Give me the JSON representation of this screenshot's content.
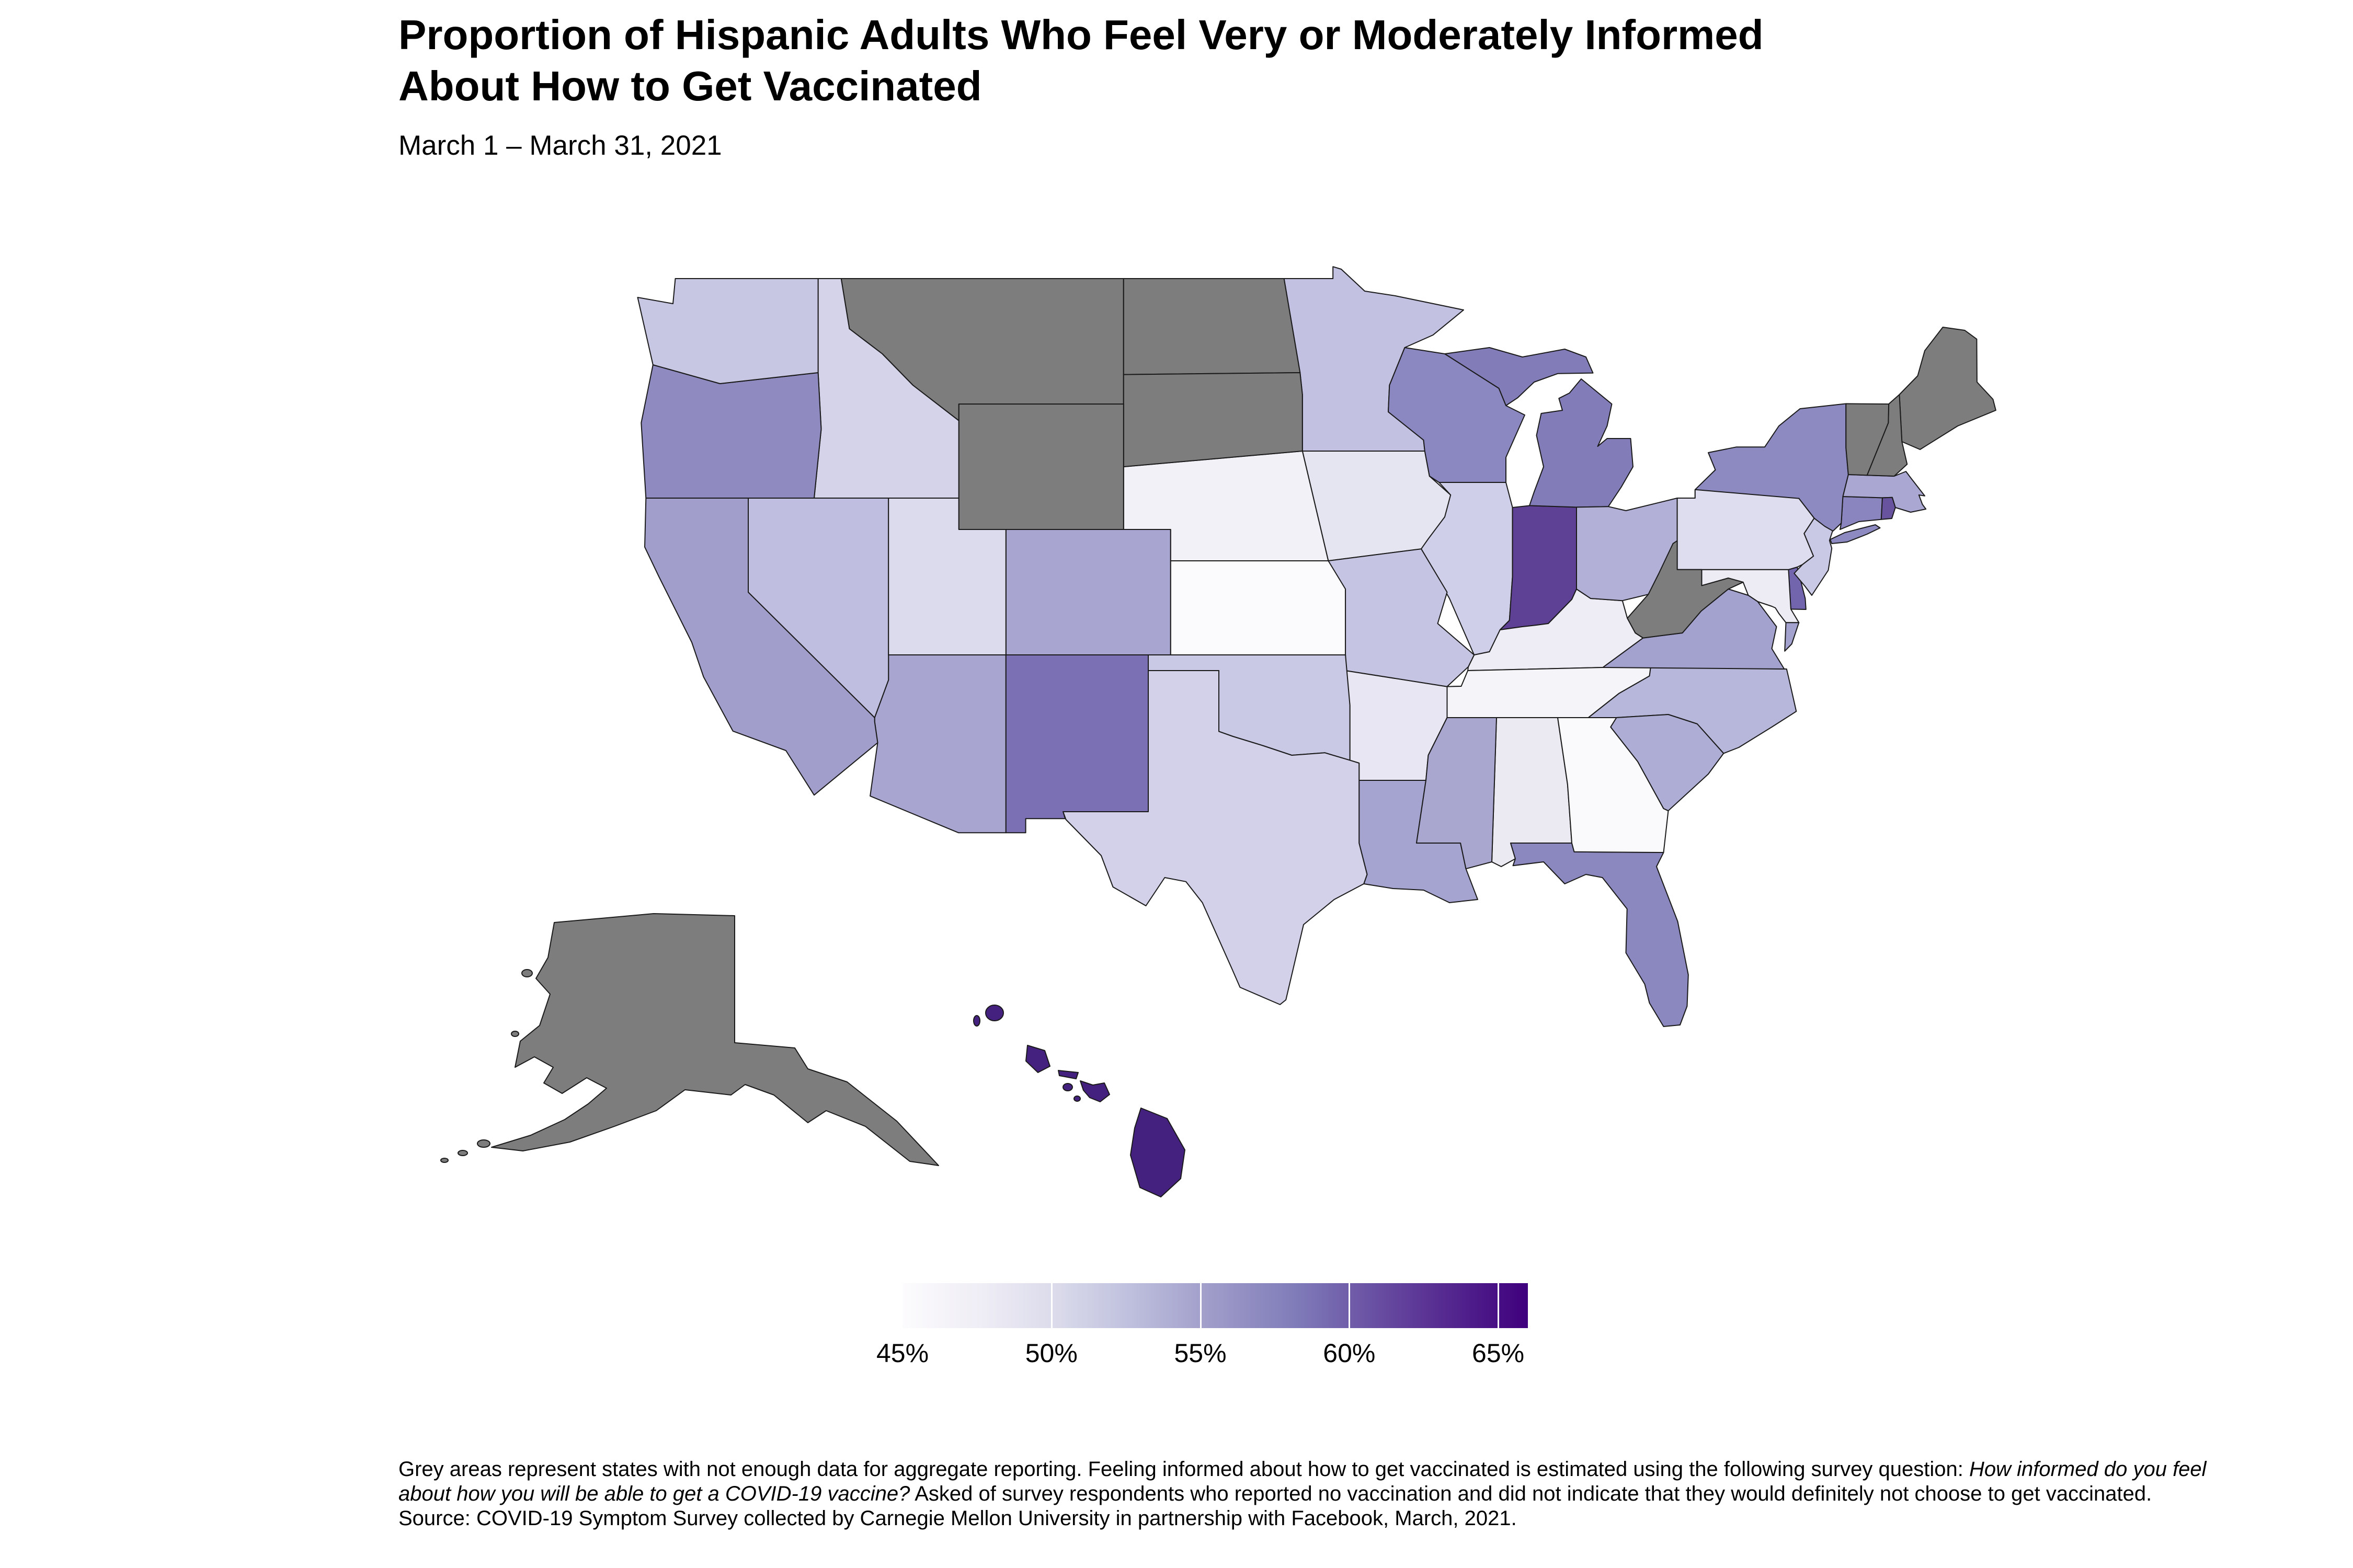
{
  "title": {
    "line1": "Proportion of Hispanic Adults Who Feel Very or Moderately Informed",
    "line2": "About How to Get Vaccinated"
  },
  "subtitle": "March 1 – March 31, 2021",
  "legend": {
    "min_value": 45,
    "max_value": 66,
    "ticks": [
      {
        "label": "45%",
        "value": 45
      },
      {
        "label": "50%",
        "value": 50
      },
      {
        "label": "55%",
        "value": 55
      },
      {
        "label": "60%",
        "value": 60
      },
      {
        "label": "65%",
        "value": 65
      }
    ],
    "gradient": [
      "#fcfbfd",
      "#efedf5",
      "#dadaeb",
      "#bcbddc",
      "#9e9ac8",
      "#807dba",
      "#6a51a3",
      "#54278f",
      "#3f007d"
    ]
  },
  "footnote": {
    "part1": "Grey areas represent states with not enough data for aggregate reporting. Feeling informed about how to get vaccinated is estimated using the following survey question: ",
    "italic": "How informed do you feel about how you will be able to get a COVID-19 vaccine?",
    "part2": " Asked of survey respondents who reported no vaccination and did not indicate that they would definitely not choose to get vaccinated. Source: COVID-19 Symptom Survey collected by Carnegie Mellon University in partnership with Facebook, March, 2021."
  },
  "colors": {
    "background": "#ffffff",
    "state_border": "#1a1a1a",
    "no_data_grey": "#7d7d7d",
    "legend_tick_line": "#ffffff"
  },
  "chart_data": {
    "type": "choropleth",
    "geography": "United States, by state (Albers-style layout with Alaska and Hawaii insets)",
    "metric": "Proportion of Hispanic adults who feel very or moderately informed about how to get vaccinated",
    "unit": "percent",
    "scale_min": 45,
    "scale_max": 66,
    "legend_tick_values": [
      45,
      50,
      55,
      60,
      65
    ],
    "no_data_color": "#7d7d7d",
    "no_data_states": [
      "Alaska",
      "Maine",
      "Montana",
      "New Hampshire",
      "North Dakota",
      "South Dakota",
      "Vermont",
      "West Virginia",
      "Wyoming"
    ],
    "states": [
      {
        "abbr": "AL",
        "name": "Alabama",
        "value": 47,
        "color": "#ebeaf3",
        "no_data": false
      },
      {
        "abbr": "AK",
        "name": "Alaska",
        "value": null,
        "color": "#7d7d7d",
        "no_data": true
      },
      {
        "abbr": "AZ",
        "name": "Arizona",
        "value": 54,
        "color": "#a8a5d0",
        "no_data": false
      },
      {
        "abbr": "AR",
        "name": "Arkansas",
        "value": 48,
        "color": "#e7e6f2",
        "no_data": false
      },
      {
        "abbr": "CA",
        "name": "California",
        "value": 55,
        "color": "#a19ecb",
        "no_data": false
      },
      {
        "abbr": "CO",
        "name": "Colorado",
        "value": 54,
        "color": "#a8a5d0",
        "no_data": false
      },
      {
        "abbr": "CT",
        "name": "Connecticut",
        "value": 57,
        "color": "#8a85bf",
        "no_data": false
      },
      {
        "abbr": "DE",
        "name": "Delaware",
        "value": 60,
        "color": "#7265ae",
        "no_data": false
      },
      {
        "abbr": "FL",
        "name": "Florida",
        "value": 57,
        "color": "#8b87bf",
        "no_data": false
      },
      {
        "abbr": "GA",
        "name": "Georgia",
        "value": 45,
        "color": "#faf9fc",
        "no_data": false
      },
      {
        "abbr": "HI",
        "name": "Hawaii",
        "value": 65,
        "color": "#45217f",
        "no_data": false
      },
      {
        "abbr": "ID",
        "name": "Idaho",
        "value": 50,
        "color": "#d4d3ea",
        "no_data": false
      },
      {
        "abbr": "IL",
        "name": "Illinois",
        "value": 50,
        "color": "#d0cfe9",
        "no_data": false
      },
      {
        "abbr": "IN",
        "name": "Indiana",
        "value": 62,
        "color": "#5e4194",
        "no_data": false
      },
      {
        "abbr": "IA",
        "name": "Iowa",
        "value": 48,
        "color": "#e5e4f1",
        "no_data": false
      },
      {
        "abbr": "KS",
        "name": "Kansas",
        "value": 45,
        "color": "#fbfafd",
        "no_data": false
      },
      {
        "abbr": "KY",
        "name": "Kentucky",
        "value": 47,
        "color": "#eeedf5",
        "no_data": false
      },
      {
        "abbr": "LA",
        "name": "Louisiana",
        "value": 55,
        "color": "#a5a3cf",
        "no_data": false
      },
      {
        "abbr": "ME",
        "name": "Maine",
        "value": null,
        "color": "#7d7d7d",
        "no_data": true
      },
      {
        "abbr": "MD",
        "name": "Maryland",
        "value": 47,
        "color": "#edecf5",
        "no_data": false
      },
      {
        "abbr": "MA",
        "name": "Massachusetts",
        "value": 54,
        "color": "#aaa8d2",
        "no_data": false
      },
      {
        "abbr": "MI",
        "name": "Michigan",
        "value": 58,
        "color": "#827db9",
        "no_data": false
      },
      {
        "abbr": "MN",
        "name": "Minnesota",
        "value": 52,
        "color": "#c2c1e1",
        "no_data": false
      },
      {
        "abbr": "MS",
        "name": "Mississippi",
        "value": 54,
        "color": "#a9a6d0",
        "no_data": false
      },
      {
        "abbr": "MO",
        "name": "Missouri",
        "value": 51,
        "color": "#c5c4e2",
        "no_data": false
      },
      {
        "abbr": "MT",
        "name": "Montana",
        "value": null,
        "color": "#7d7d7d",
        "no_data": true
      },
      {
        "abbr": "NE",
        "name": "Nebraska",
        "value": 46,
        "color": "#f2f1f8",
        "no_data": false
      },
      {
        "abbr": "NV",
        "name": "Nevada",
        "value": 52,
        "color": "#bfbee0",
        "no_data": false
      },
      {
        "abbr": "NH",
        "name": "New Hampshire",
        "value": null,
        "color": "#7d7d7d",
        "no_data": true
      },
      {
        "abbr": "NJ",
        "name": "New Jersey",
        "value": 51,
        "color": "#c9c8e5",
        "no_data": false
      },
      {
        "abbr": "NM",
        "name": "New Mexico",
        "value": 59,
        "color": "#7a70b3",
        "no_data": false
      },
      {
        "abbr": "NY",
        "name": "New York",
        "value": 57,
        "color": "#8d89c1",
        "no_data": false
      },
      {
        "abbr": "NC",
        "name": "North Carolina",
        "value": 53,
        "color": "#b7b6db",
        "no_data": false
      },
      {
        "abbr": "ND",
        "name": "North Dakota",
        "value": null,
        "color": "#7d7d7d",
        "no_data": true
      },
      {
        "abbr": "OH",
        "name": "Ohio",
        "value": 53,
        "color": "#b2b0d7",
        "no_data": false
      },
      {
        "abbr": "OK",
        "name": "Oklahoma",
        "value": 51,
        "color": "#c9c8e5",
        "no_data": false
      },
      {
        "abbr": "OR",
        "name": "Oregon",
        "value": 57,
        "color": "#8f8bc1",
        "no_data": false
      },
      {
        "abbr": "PA",
        "name": "Pennsylvania",
        "value": 49,
        "color": "#dedcef",
        "no_data": false
      },
      {
        "abbr": "RI",
        "name": "Rhode Island",
        "value": 61,
        "color": "#68539f",
        "no_data": false
      },
      {
        "abbr": "SC",
        "name": "South Carolina",
        "value": 54,
        "color": "#aeadd5",
        "no_data": false
      },
      {
        "abbr": "SD",
        "name": "South Dakota",
        "value": null,
        "color": "#7d7d7d",
        "no_data": true
      },
      {
        "abbr": "TN",
        "name": "Tennessee",
        "value": 46,
        "color": "#f5f4f9",
        "no_data": false
      },
      {
        "abbr": "TX",
        "name": "Texas",
        "value": 50,
        "color": "#d2d1e9",
        "no_data": false
      },
      {
        "abbr": "UT",
        "name": "Utah",
        "value": 49,
        "color": "#dcdbee",
        "no_data": false
      },
      {
        "abbr": "VT",
        "name": "Vermont",
        "value": null,
        "color": "#7d7d7d",
        "no_data": true
      },
      {
        "abbr": "VA",
        "name": "Virginia",
        "value": 55,
        "color": "#a3a1ce",
        "no_data": false
      },
      {
        "abbr": "WA",
        "name": "Washington",
        "value": 51,
        "color": "#c7c6e3",
        "no_data": false
      },
      {
        "abbr": "WV",
        "name": "West Virginia",
        "value": null,
        "color": "#7d7d7d",
        "no_data": true
      },
      {
        "abbr": "WI",
        "name": "Wisconsin",
        "value": 57,
        "color": "#8b87c0",
        "no_data": false
      },
      {
        "abbr": "WY",
        "name": "Wyoming",
        "value": null,
        "color": "#7d7d7d",
        "no_data": true
      }
    ]
  }
}
